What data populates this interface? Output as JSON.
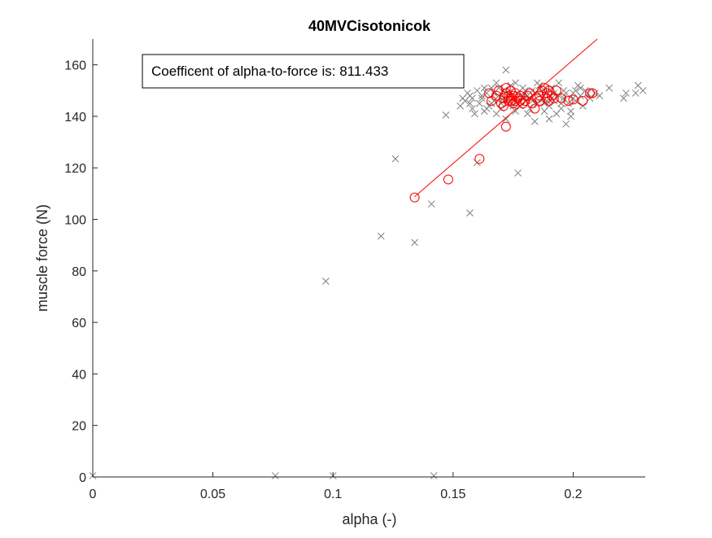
{
  "chart_data": {
    "type": "scatter",
    "title": "40MVCisotonicok",
    "xlabel": "alpha (-)",
    "ylabel": "muscle force (N)",
    "xlim": [
      0,
      0.23
    ],
    "ylim": [
      0,
      170
    ],
    "x_ticks": [
      0,
      0.05,
      0.1,
      0.15,
      0.2
    ],
    "x_tick_labels": [
      "0",
      "0.05",
      "0.1",
      "0.15",
      "0.2"
    ],
    "y_ticks": [
      0,
      20,
      40,
      60,
      80,
      100,
      120,
      140,
      160
    ],
    "y_tick_labels": [
      "0",
      "20",
      "40",
      "60",
      "80",
      "100",
      "120",
      "140",
      "160"
    ],
    "grid": false,
    "annotation": "Coefficent of alpha-to-force is: 811.433",
    "colors": {
      "raw": "#7f7f7f",
      "fit": "#ff0000",
      "axis": "#262626"
    },
    "series": [
      {
        "marker": "x",
        "color": "#7f7f7f",
        "points": [
          [
            0.0,
            0.5
          ],
          [
            0.076,
            0.5
          ],
          [
            0.1,
            0.5
          ],
          [
            0.142,
            0.5
          ],
          [
            0.097,
            76
          ],
          [
            0.12,
            93.5
          ],
          [
            0.134,
            91
          ],
          [
            0.141,
            106
          ],
          [
            0.126,
            123.5
          ],
          [
            0.157,
            102.5
          ],
          [
            0.177,
            118
          ],
          [
            0.16,
            122
          ],
          [
            0.147,
            140.5
          ],
          [
            0.172,
            158
          ],
          [
            0.153,
            144
          ],
          [
            0.155,
            146
          ],
          [
            0.157,
            148
          ],
          [
            0.158,
            143
          ],
          [
            0.16,
            150
          ],
          [
            0.161,
            145
          ],
          [
            0.162,
            147
          ],
          [
            0.163,
            142
          ],
          [
            0.164,
            149
          ],
          [
            0.165,
            144
          ],
          [
            0.166,
            151
          ],
          [
            0.167,
            146
          ],
          [
            0.168,
            141
          ],
          [
            0.169,
            148
          ],
          [
            0.17,
            143
          ],
          [
            0.171,
            150
          ],
          [
            0.173,
            145
          ],
          [
            0.174,
            152
          ],
          [
            0.175,
            147
          ],
          [
            0.176,
            142
          ],
          [
            0.177,
            149
          ],
          [
            0.178,
            144
          ],
          [
            0.179,
            151
          ],
          [
            0.18,
            146
          ],
          [
            0.181,
            148
          ],
          [
            0.182,
            143
          ],
          [
            0.183,
            150
          ],
          [
            0.184,
            138
          ],
          [
            0.185,
            145
          ],
          [
            0.186,
            152
          ],
          [
            0.187,
            147
          ],
          [
            0.188,
            142
          ],
          [
            0.189,
            149
          ],
          [
            0.19,
            144
          ],
          [
            0.191,
            151
          ],
          [
            0.192,
            146
          ],
          [
            0.193,
            141
          ],
          [
            0.194,
            148
          ],
          [
            0.195,
            143
          ],
          [
            0.196,
            150
          ],
          [
            0.197,
            137
          ],
          [
            0.198,
            145
          ],
          [
            0.199,
            142
          ],
          [
            0.2,
            149
          ],
          [
            0.201,
            146
          ],
          [
            0.202,
            152
          ],
          [
            0.203,
            148
          ],
          [
            0.204,
            144
          ],
          [
            0.205,
            150
          ],
          [
            0.207,
            147
          ],
          [
            0.209,
            149
          ],
          [
            0.211,
            148
          ],
          [
            0.215,
            151
          ],
          [
            0.221,
            147
          ],
          [
            0.222,
            149
          ],
          [
            0.226,
            149
          ],
          [
            0.227,
            152
          ],
          [
            0.229,
            150
          ],
          [
            0.156,
            149
          ],
          [
            0.159,
            141
          ],
          [
            0.163,
            151
          ],
          [
            0.168,
            153
          ],
          [
            0.172,
            139
          ],
          [
            0.176,
            153
          ],
          [
            0.181,
            141
          ],
          [
            0.185,
            153
          ],
          [
            0.19,
            139
          ],
          [
            0.194,
            153
          ],
          [
            0.199,
            140
          ],
          [
            0.171,
            147
          ],
          [
            0.175,
            144
          ],
          [
            0.179,
            148
          ],
          [
            0.183,
            146
          ],
          [
            0.187,
            150
          ],
          [
            0.191,
            147
          ],
          [
            0.195,
            145
          ],
          [
            0.166,
            145
          ],
          [
            0.162,
            148
          ],
          [
            0.158,
            147
          ],
          [
            0.169,
            151
          ],
          [
            0.173,
            149
          ],
          [
            0.177,
            146
          ],
          [
            0.18,
            150
          ],
          [
            0.184,
            149
          ],
          [
            0.188,
            145
          ],
          [
            0.192,
            149
          ],
          [
            0.196,
            147
          ],
          [
            0.2,
            147
          ],
          [
            0.203,
            151
          ],
          [
            0.206,
            149
          ],
          [
            0.154,
            147
          ],
          [
            0.157,
            145
          ],
          [
            0.167,
            149
          ],
          [
            0.174,
            148
          ],
          [
            0.182,
            147
          ],
          [
            0.189,
            146
          ],
          [
            0.197,
            149
          ],
          [
            0.201,
            150
          ],
          [
            0.164,
            143
          ],
          [
            0.17,
            145
          ]
        ]
      },
      {
        "marker": "o",
        "color": "#ff0000",
        "points": [
          [
            0.134,
            108.5
          ],
          [
            0.148,
            115.5
          ],
          [
            0.161,
            123.5
          ],
          [
            0.172,
            136
          ],
          [
            0.165,
            149
          ],
          [
            0.166,
            146
          ],
          [
            0.168,
            148
          ],
          [
            0.169,
            150
          ],
          [
            0.17,
            145
          ],
          [
            0.171,
            147
          ],
          [
            0.172,
            149
          ],
          [
            0.172,
            151
          ],
          [
            0.173,
            146
          ],
          [
            0.173,
            148
          ],
          [
            0.174,
            147
          ],
          [
            0.174,
            150
          ],
          [
            0.175,
            145
          ],
          [
            0.175,
            148
          ],
          [
            0.176,
            146
          ],
          [
            0.176,
            149
          ],
          [
            0.177,
            147
          ],
          [
            0.178,
            148
          ],
          [
            0.179,
            145
          ],
          [
            0.18,
            146
          ],
          [
            0.181,
            148
          ],
          [
            0.182,
            149
          ],
          [
            0.183,
            145
          ],
          [
            0.184,
            143
          ],
          [
            0.185,
            147
          ],
          [
            0.186,
            148
          ],
          [
            0.187,
            150
          ],
          [
            0.188,
            151
          ],
          [
            0.189,
            149
          ],
          [
            0.189,
            147
          ],
          [
            0.19,
            150
          ],
          [
            0.191,
            148
          ],
          [
            0.192,
            147
          ],
          [
            0.193,
            150
          ],
          [
            0.195,
            147
          ],
          [
            0.198,
            146
          ],
          [
            0.2,
            146.5
          ],
          [
            0.204,
            146
          ],
          [
            0.207,
            149
          ],
          [
            0.208,
            149
          ],
          [
            0.171,
            144
          ],
          [
            0.174,
            146
          ],
          [
            0.178,
            146
          ],
          [
            0.186,
            146
          ],
          [
            0.19,
            146
          ]
        ]
      },
      {
        "type": "line",
        "color": "#ff0000",
        "points": [
          [
            0.134,
            108.8
          ],
          [
            0.21,
            170
          ]
        ]
      }
    ]
  }
}
